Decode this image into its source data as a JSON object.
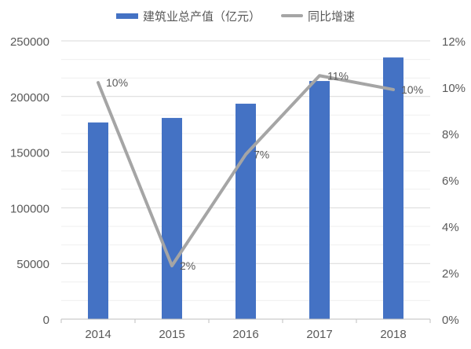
{
  "legend": {
    "bar_label": "建筑业总产值（亿元）",
    "line_label": "同比增速"
  },
  "colors": {
    "bar": "#4472C4",
    "line": "#A5A5A5",
    "grid_major": "#D9D9D9",
    "grid_minor": "#EFEFEF",
    "text": "#595959"
  },
  "chart_data": {
    "type": "bar+line",
    "title": "",
    "categories": [
      "2014",
      "2015",
      "2016",
      "2017",
      "2018"
    ],
    "series": [
      {
        "name": "建筑业总产值（亿元）",
        "type": "bar",
        "axis": "left",
        "values": [
          176713,
          180757,
          193567,
          213944,
          235086
        ]
      },
      {
        "name": "同比增速",
        "type": "line",
        "axis": "right",
        "values": [
          10.2,
          2.3,
          7.1,
          10.5,
          9.9
        ],
        "data_labels": [
          "10%",
          "2%",
          "7%",
          "11%",
          "10%"
        ]
      }
    ],
    "left_axis": {
      "ylim": [
        0,
        250000
      ],
      "ticks": [
        0,
        50000,
        100000,
        150000,
        200000,
        250000
      ],
      "tick_labels": [
        "0",
        "50000",
        "100000",
        "150000",
        "200000",
        "250000"
      ]
    },
    "right_axis": {
      "ylim": [
        0,
        12
      ],
      "ticks": [
        0,
        2,
        4,
        6,
        8,
        10,
        12
      ],
      "tick_labels": [
        "0%",
        "2%",
        "4%",
        "6%",
        "8%",
        "10%",
        "12%"
      ]
    },
    "xlabel": "",
    "ylabel": "",
    "grid": true,
    "legend_position": "top"
  }
}
